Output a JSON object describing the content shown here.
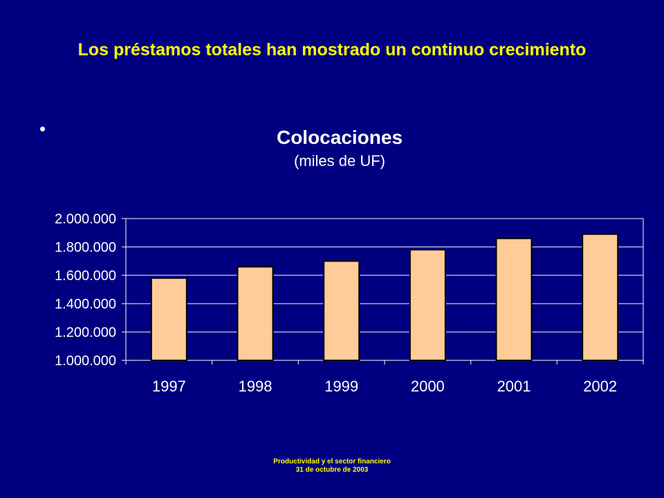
{
  "slide": {
    "title": "Los préstamos totales han mostrado un continuo crecimiento",
    "bullet": "•",
    "footer_line1": "Productividad y el sector financiero",
    "footer_line2": "31 de octubre de 2003"
  },
  "colors": {
    "background": "#000080",
    "title": "#ffff00",
    "chart_text": "#ffffff",
    "bar_fill": "#ffcc99",
    "bar_stroke": "#000000",
    "gridline": "#ffffff"
  },
  "chart_data": {
    "type": "bar",
    "title": "Colocaciones",
    "subtitle": "(miles de UF)",
    "categories": [
      "1997",
      "1998",
      "1999",
      "2000",
      "2001",
      "2002"
    ],
    "values": [
      1580000,
      1660000,
      1700000,
      1780000,
      1860000,
      1890000
    ],
    "ylim": [
      1000000,
      2000000
    ],
    "yticks": [
      1000000,
      1200000,
      1400000,
      1600000,
      1800000,
      2000000
    ],
    "ytick_labels": [
      "1.000.000",
      "1.200.000",
      "1.400.000",
      "1.600.000",
      "1.800.000",
      "2.000.000"
    ],
    "grid": true,
    "legend": "none"
  }
}
